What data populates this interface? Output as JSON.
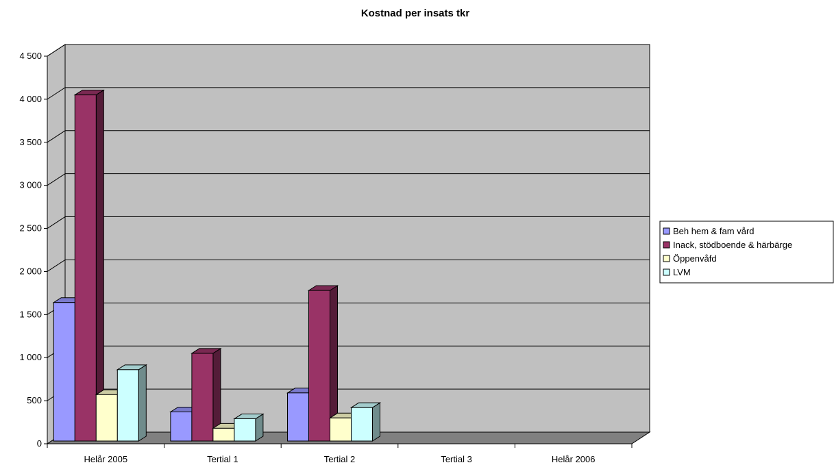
{
  "chart_data": {
    "type": "bar",
    "subtype": "3d-clustered-column",
    "title": "Kostnad per insats tkr",
    "categories": [
      "Helår 2005",
      "Tertial 1",
      "Tertial 2",
      "Tertial 3",
      "Helår 2006"
    ],
    "series": [
      {
        "name": "Beh hem & fam vård",
        "color": "#9999ff",
        "values": [
          1640,
          370,
          590,
          null,
          null
        ]
      },
      {
        "name": "Inack, stödboende & härbärge",
        "color": "#993366",
        "values": [
          4050,
          1050,
          1780,
          null,
          null
        ]
      },
      {
        "name": "Öppenvåfd",
        "color": "#ffffcc",
        "values": [
          570,
          180,
          300,
          null,
          null
        ]
      },
      {
        "name": "LVM",
        "color": "#ccffff",
        "values": [
          860,
          290,
          420,
          null,
          null
        ]
      }
    ],
    "yticks": [
      "0",
      "500",
      "1 000",
      "1 500",
      "2 000",
      "2 500",
      "3 000",
      "3 500",
      "4 000",
      "4 500"
    ],
    "ylim": [
      0,
      4500
    ],
    "xlabel": "",
    "ylabel": "",
    "grid": true,
    "legend_position": "right",
    "plot_background": "#c0c0c0"
  }
}
